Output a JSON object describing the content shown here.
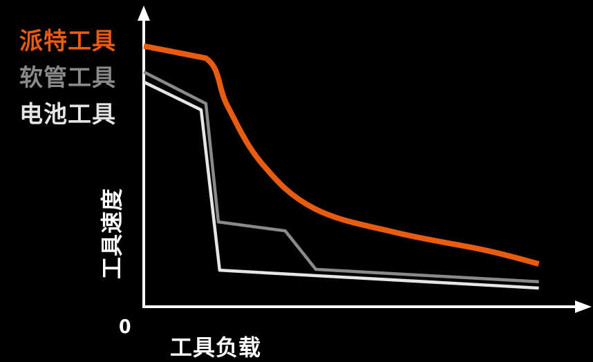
{
  "chart_data": {
    "type": "line",
    "xlabel": "工具负载",
    "ylabel": "工具速度",
    "origin_label": "0",
    "xlim": [
      0,
      100
    ],
    "ylim": [
      0,
      100
    ],
    "grid": false,
    "legend_position": "top-left",
    "series": [
      {
        "name": "派特工具",
        "color": "#E85C12",
        "x": [
          0,
          14.4,
          19.4,
          27.3,
          39.5,
          58.5,
          79.1,
          91.6
        ],
        "y": [
          90.7,
          86.5,
          69.9,
          50.0,
          34.2,
          25.8,
          19.7,
          14.9
        ]
      },
      {
        "name": "软管工具",
        "color": "#8A8A8A",
        "x": [
          0,
          14.4,
          17.3,
          32.8,
          39.9,
          91.6
        ],
        "y": [
          81.7,
          70.7,
          29.5,
          26.4,
          13.0,
          8.7
        ]
      },
      {
        "name": "电池工具",
        "color": "#E6E6E6",
        "x": [
          0,
          13.3,
          17.6,
          91.6
        ],
        "y": [
          78.2,
          68.5,
          12.7,
          6.5
        ]
      }
    ]
  }
}
